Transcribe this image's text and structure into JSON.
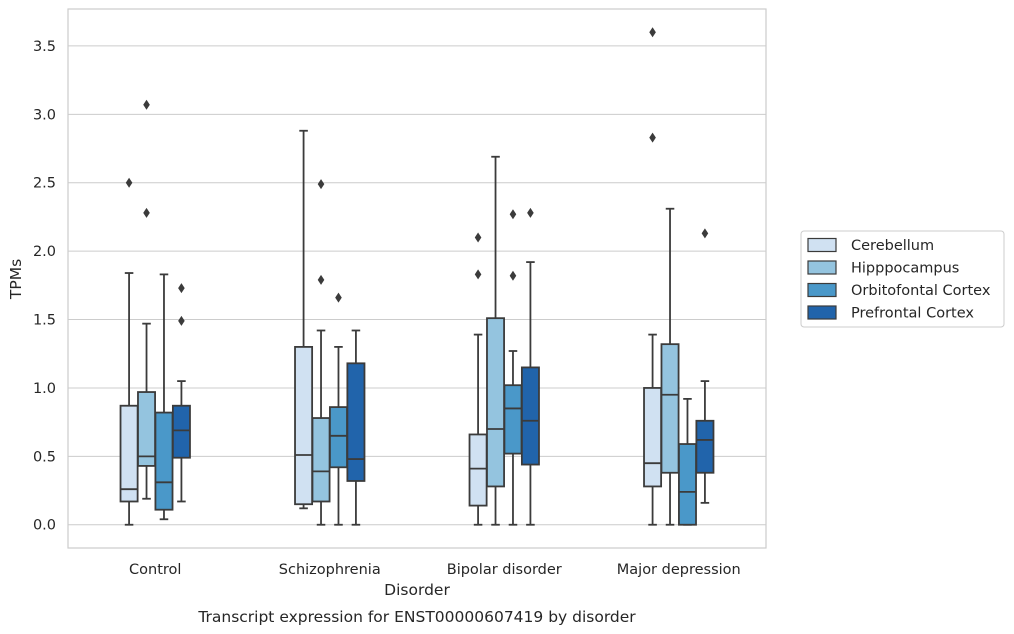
{
  "chart_data": {
    "type": "box",
    "title": "",
    "caption": "Transcript expression for ENST00000607419 by disorder",
    "xlabel": "Disorder",
    "ylabel": "TPMs",
    "ylim": [
      -0.17,
      3.77
    ],
    "yticks": [
      "0.0",
      "0.5",
      "1.0",
      "1.5",
      "2.0",
      "2.5",
      "3.0",
      "3.5"
    ],
    "grid": "horizontal",
    "legend_position": "right",
    "categories": [
      "Control",
      "Schizophrenia",
      "Bipolar disorder",
      "Major depression"
    ],
    "series": [
      {
        "name": "Cerebellum",
        "color": "#d0e1f2",
        "boxes": [
          {
            "whislo": 0.0,
            "q1": 0.17,
            "med": 0.26,
            "q3": 0.87,
            "whishi": 1.84,
            "fliers": [
              2.5
            ]
          },
          {
            "whislo": 0.12,
            "q1": 0.15,
            "med": 0.51,
            "q3": 1.3,
            "whishi": 2.88,
            "fliers": []
          },
          {
            "whislo": 0.0,
            "q1": 0.14,
            "med": 0.41,
            "q3": 0.66,
            "whishi": 1.39,
            "fliers": [
              1.83,
              2.1
            ]
          },
          {
            "whislo": 0.0,
            "q1": 0.28,
            "med": 0.45,
            "q3": 1.0,
            "whishi": 1.39,
            "fliers": [
              2.83,
              3.6
            ]
          }
        ]
      },
      {
        "name": "Hipppocampus",
        "color": "#94c4df",
        "boxes": [
          {
            "whislo": 0.19,
            "q1": 0.43,
            "med": 0.5,
            "q3": 0.97,
            "whishi": 1.47,
            "fliers": [
              2.28,
              3.07
            ]
          },
          {
            "whislo": 0.0,
            "q1": 0.17,
            "med": 0.39,
            "q3": 0.78,
            "whishi": 1.42,
            "fliers": [
              1.79,
              2.49
            ]
          },
          {
            "whislo": 0.0,
            "q1": 0.28,
            "med": 0.7,
            "q3": 1.51,
            "whishi": 2.69,
            "fliers": []
          },
          {
            "whislo": 0.0,
            "q1": 0.38,
            "med": 0.95,
            "q3": 1.32,
            "whishi": 2.31,
            "fliers": []
          }
        ]
      },
      {
        "name": "Orbitofontal Cortex",
        "color": "#4a98c9",
        "boxes": [
          {
            "whislo": 0.04,
            "q1": 0.11,
            "med": 0.31,
            "q3": 0.82,
            "whishi": 1.83,
            "fliers": []
          },
          {
            "whislo": 0.0,
            "q1": 0.42,
            "med": 0.65,
            "q3": 0.86,
            "whishi": 1.3,
            "fliers": [
              1.66
            ]
          },
          {
            "whislo": 0.0,
            "q1": 0.52,
            "med": 0.85,
            "q3": 1.02,
            "whishi": 1.27,
            "fliers": [
              1.82,
              2.27
            ]
          },
          {
            "whislo": 0.0,
            "q1": 0.0,
            "med": 0.24,
            "q3": 0.59,
            "whishi": 0.92,
            "fliers": []
          }
        ]
      },
      {
        "name": "Prefrontal Cortex",
        "color": "#2164ab",
        "boxes": [
          {
            "whislo": 0.17,
            "q1": 0.49,
            "med": 0.69,
            "q3": 0.87,
            "whishi": 1.05,
            "fliers": [
              1.49,
              1.73
            ]
          },
          {
            "whislo": 0.0,
            "q1": 0.32,
            "med": 0.48,
            "q3": 1.18,
            "whishi": 1.42,
            "fliers": []
          },
          {
            "whislo": 0.0,
            "q1": 0.44,
            "med": 0.76,
            "q3": 1.15,
            "whishi": 1.92,
            "fliers": [
              2.28
            ]
          },
          {
            "whislo": 0.16,
            "q1": 0.38,
            "med": 0.62,
            "q3": 0.76,
            "whishi": 1.05,
            "fliers": [
              2.13
            ]
          }
        ]
      }
    ]
  }
}
